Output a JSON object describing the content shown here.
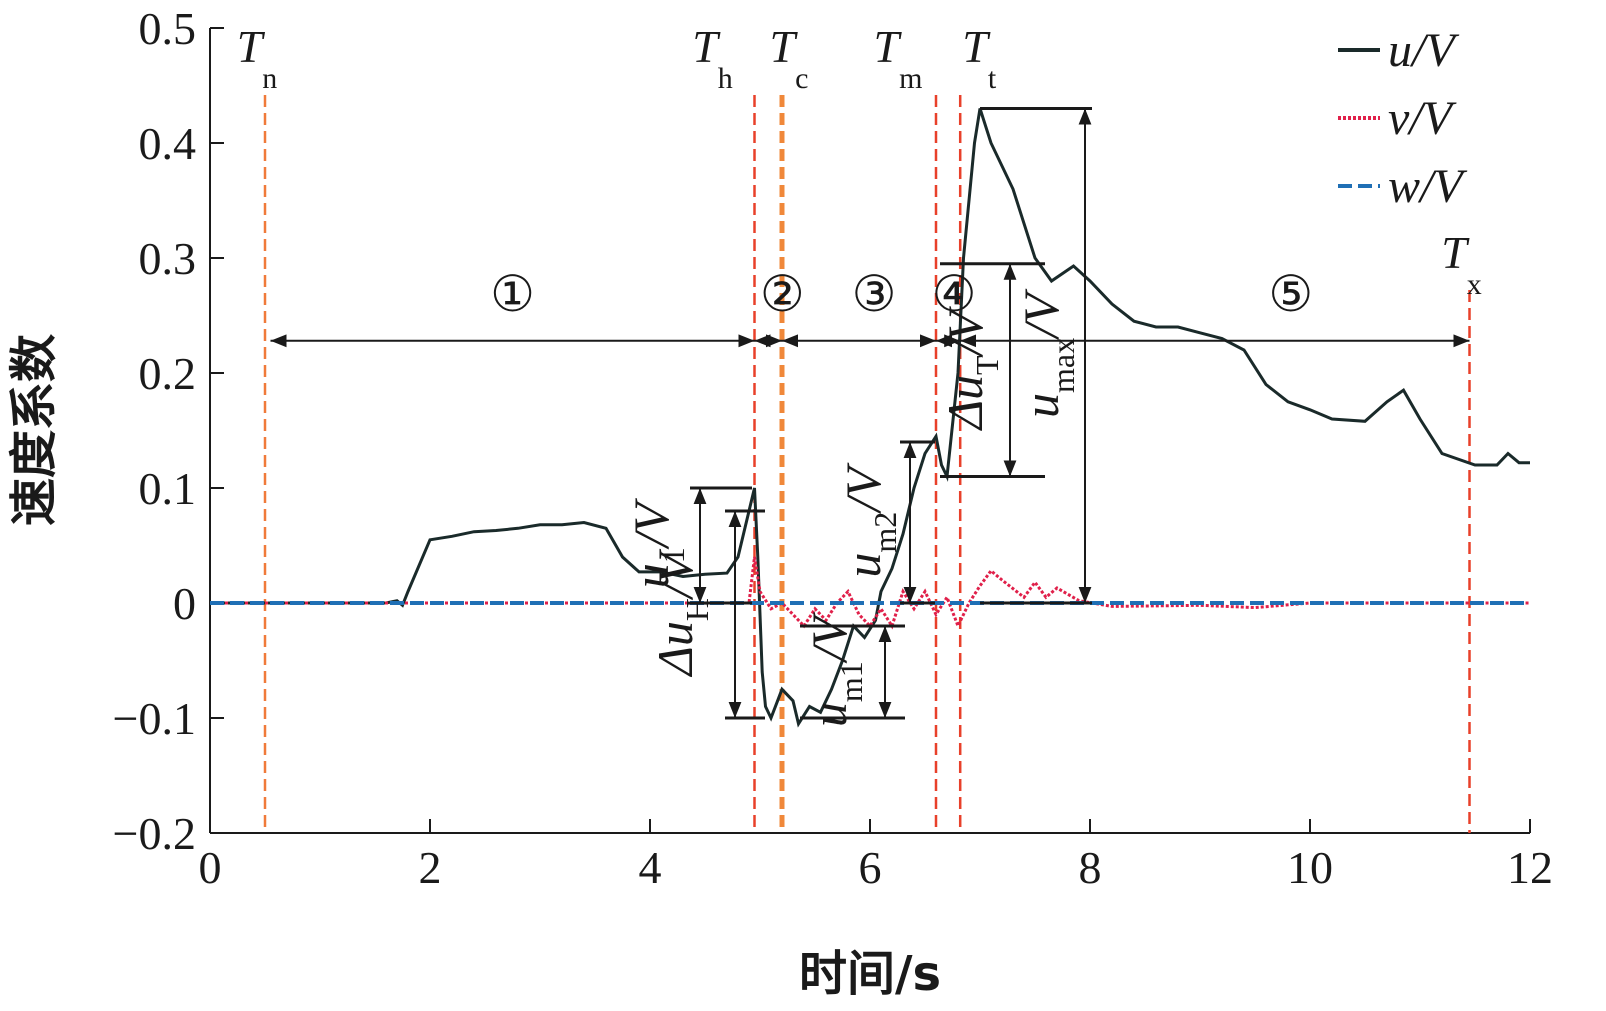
{
  "chart_data": {
    "type": "line",
    "xlabel": "时间/s",
    "ylabel": "速度系数",
    "xlim": [
      0,
      12
    ],
    "ylim": [
      -0.2,
      0.5
    ],
    "xticks": [
      0,
      2,
      4,
      6,
      8,
      10,
      12
    ],
    "yticks": [
      {
        "value": -0.2,
        "label": "−0.2"
      },
      {
        "value": -0.1,
        "label": "−0.1"
      },
      0,
      0.1,
      0.2,
      0.3,
      0.4,
      0.5
    ],
    "legend": "upper right",
    "series": [
      {
        "name": "u/V",
        "color": "#1a2a2a",
        "style": "solid",
        "x": [
          0,
          1.6,
          1.7,
          1.75,
          1.8,
          2.0,
          2.2,
          2.4,
          2.6,
          2.8,
          3.0,
          3.2,
          3.4,
          3.6,
          3.75,
          3.9,
          4.1,
          4.3,
          4.5,
          4.7,
          4.8,
          4.9,
          4.95,
          4.98,
          5.02,
          5.05,
          5.1,
          5.2,
          5.3,
          5.35,
          5.45,
          5.55,
          5.65,
          5.75,
          5.85,
          5.95,
          6.05,
          6.1,
          6.2,
          6.3,
          6.4,
          6.5,
          6.6,
          6.65,
          6.7,
          6.8,
          6.85,
          6.95,
          7.0,
          7.1,
          7.3,
          7.5,
          7.65,
          7.85,
          8.0,
          8.2,
          8.4,
          8.6,
          8.8,
          9.0,
          9.2,
          9.4,
          9.6,
          9.8,
          10.0,
          10.2,
          10.5,
          10.7,
          10.85,
          11.0,
          11.2,
          11.5,
          11.7,
          11.8,
          11.9,
          12
        ],
        "values": [
          0,
          0,
          0.002,
          -0.002,
          0.01,
          0.055,
          0.058,
          0.062,
          0.063,
          0.065,
          0.068,
          0.068,
          0.07,
          0.065,
          0.04,
          0.027,
          0.027,
          0.023,
          0.025,
          0.026,
          0.04,
          0.08,
          0.1,
          0.04,
          -0.06,
          -0.09,
          -0.1,
          -0.075,
          -0.085,
          -0.105,
          -0.09,
          -0.095,
          -0.075,
          -0.05,
          -0.02,
          -0.03,
          -0.015,
          0.01,
          0.03,
          0.06,
          0.1,
          0.13,
          0.145,
          0.12,
          0.11,
          0.2,
          0.3,
          0.4,
          0.43,
          0.4,
          0.36,
          0.3,
          0.28,
          0.293,
          0.28,
          0.26,
          0.245,
          0.24,
          0.24,
          0.235,
          0.23,
          0.22,
          0.19,
          0.175,
          0.168,
          0.16,
          0.158,
          0.175,
          0.185,
          0.16,
          0.13,
          0.12,
          0.12,
          0.13,
          0.122,
          0.122
        ]
      },
      {
        "name": "v/V",
        "color": "#e0204a",
        "style": "dotted",
        "x": [
          0,
          4.9,
          4.95,
          5.0,
          5.1,
          5.2,
          5.3,
          5.4,
          5.5,
          5.6,
          5.7,
          5.8,
          5.9,
          6.0,
          6.1,
          6.2,
          6.3,
          6.4,
          6.5,
          6.6,
          6.7,
          6.8,
          6.9,
          7.0,
          7.1,
          7.2,
          7.4,
          7.5,
          7.6,
          7.7,
          7.9,
          8.2,
          9.0,
          9.5,
          10.0,
          12
        ],
        "values": [
          0,
          0,
          0.04,
          0.01,
          -0.005,
          0,
          -0.01,
          -0.02,
          -0.005,
          -0.015,
          0,
          0.01,
          -0.01,
          -0.02,
          -0.005,
          -0.02,
          0.01,
          -0.005,
          0.01,
          -0.01,
          0.005,
          -0.02,
          0,
          0.015,
          0.028,
          0.02,
          0.005,
          0.018,
          0.005,
          0.013,
          0.002,
          -0.003,
          -0.002,
          -0.004,
          0,
          0
        ]
      },
      {
        "name": "w/V",
        "color": "#1f6fb5",
        "style": "dashed",
        "x": [
          0,
          12
        ],
        "values": [
          0,
          0
        ]
      }
    ],
    "markers": [
      {
        "main": "T",
        "sub": "n",
        "x": 0.5,
        "color": "#f07a3a"
      },
      {
        "main": "T",
        "sub": "h",
        "x": 4.95,
        "color": "#e8402a"
      },
      {
        "main": "T",
        "sub": "c",
        "x": 5.2,
        "color": "#f0883a"
      },
      {
        "main": "T",
        "sub": "m",
        "x": 6.6,
        "color": "#e8402a"
      },
      {
        "main": "T",
        "sub": "t",
        "x": 6.82,
        "color": "#e8402a"
      },
      {
        "main": "T",
        "sub": "x",
        "x": 11.45,
        "color": "#e8402a"
      }
    ],
    "stages": [
      {
        "label": "①",
        "from": 0.55,
        "to": 4.95
      },
      {
        "label": "②",
        "from": 4.95,
        "to": 5.2
      },
      {
        "label": "③",
        "from": 5.2,
        "to": 6.6
      },
      {
        "label": "④",
        "from": 6.6,
        "to": 6.82
      },
      {
        "label": "⑤",
        "from": 6.82,
        "to": 11.45
      }
    ],
    "stage_level": 0.228,
    "dimensions": [
      {
        "main": "u",
        "sub": "1",
        "tail": "/V",
        "from": 0,
        "to": 0.1
      },
      {
        "main": "Δu",
        "sub": "H",
        "tail": "/V",
        "from": -0.1,
        "to": 0.08
      },
      {
        "main": "u",
        "sub": "m1",
        "tail": "/V",
        "from": -0.1,
        "to": -0.02
      },
      {
        "main": "u",
        "sub": "m2",
        "tail": "/V",
        "from": 0,
        "to": 0.14
      },
      {
        "main": "Δu",
        "sub": "T",
        "tail": "/V",
        "from": 0.11,
        "to": 0.295
      },
      {
        "main": "u",
        "sub": "max",
        "tail": "/V",
        "from": 0,
        "to": 0.43
      }
    ]
  }
}
